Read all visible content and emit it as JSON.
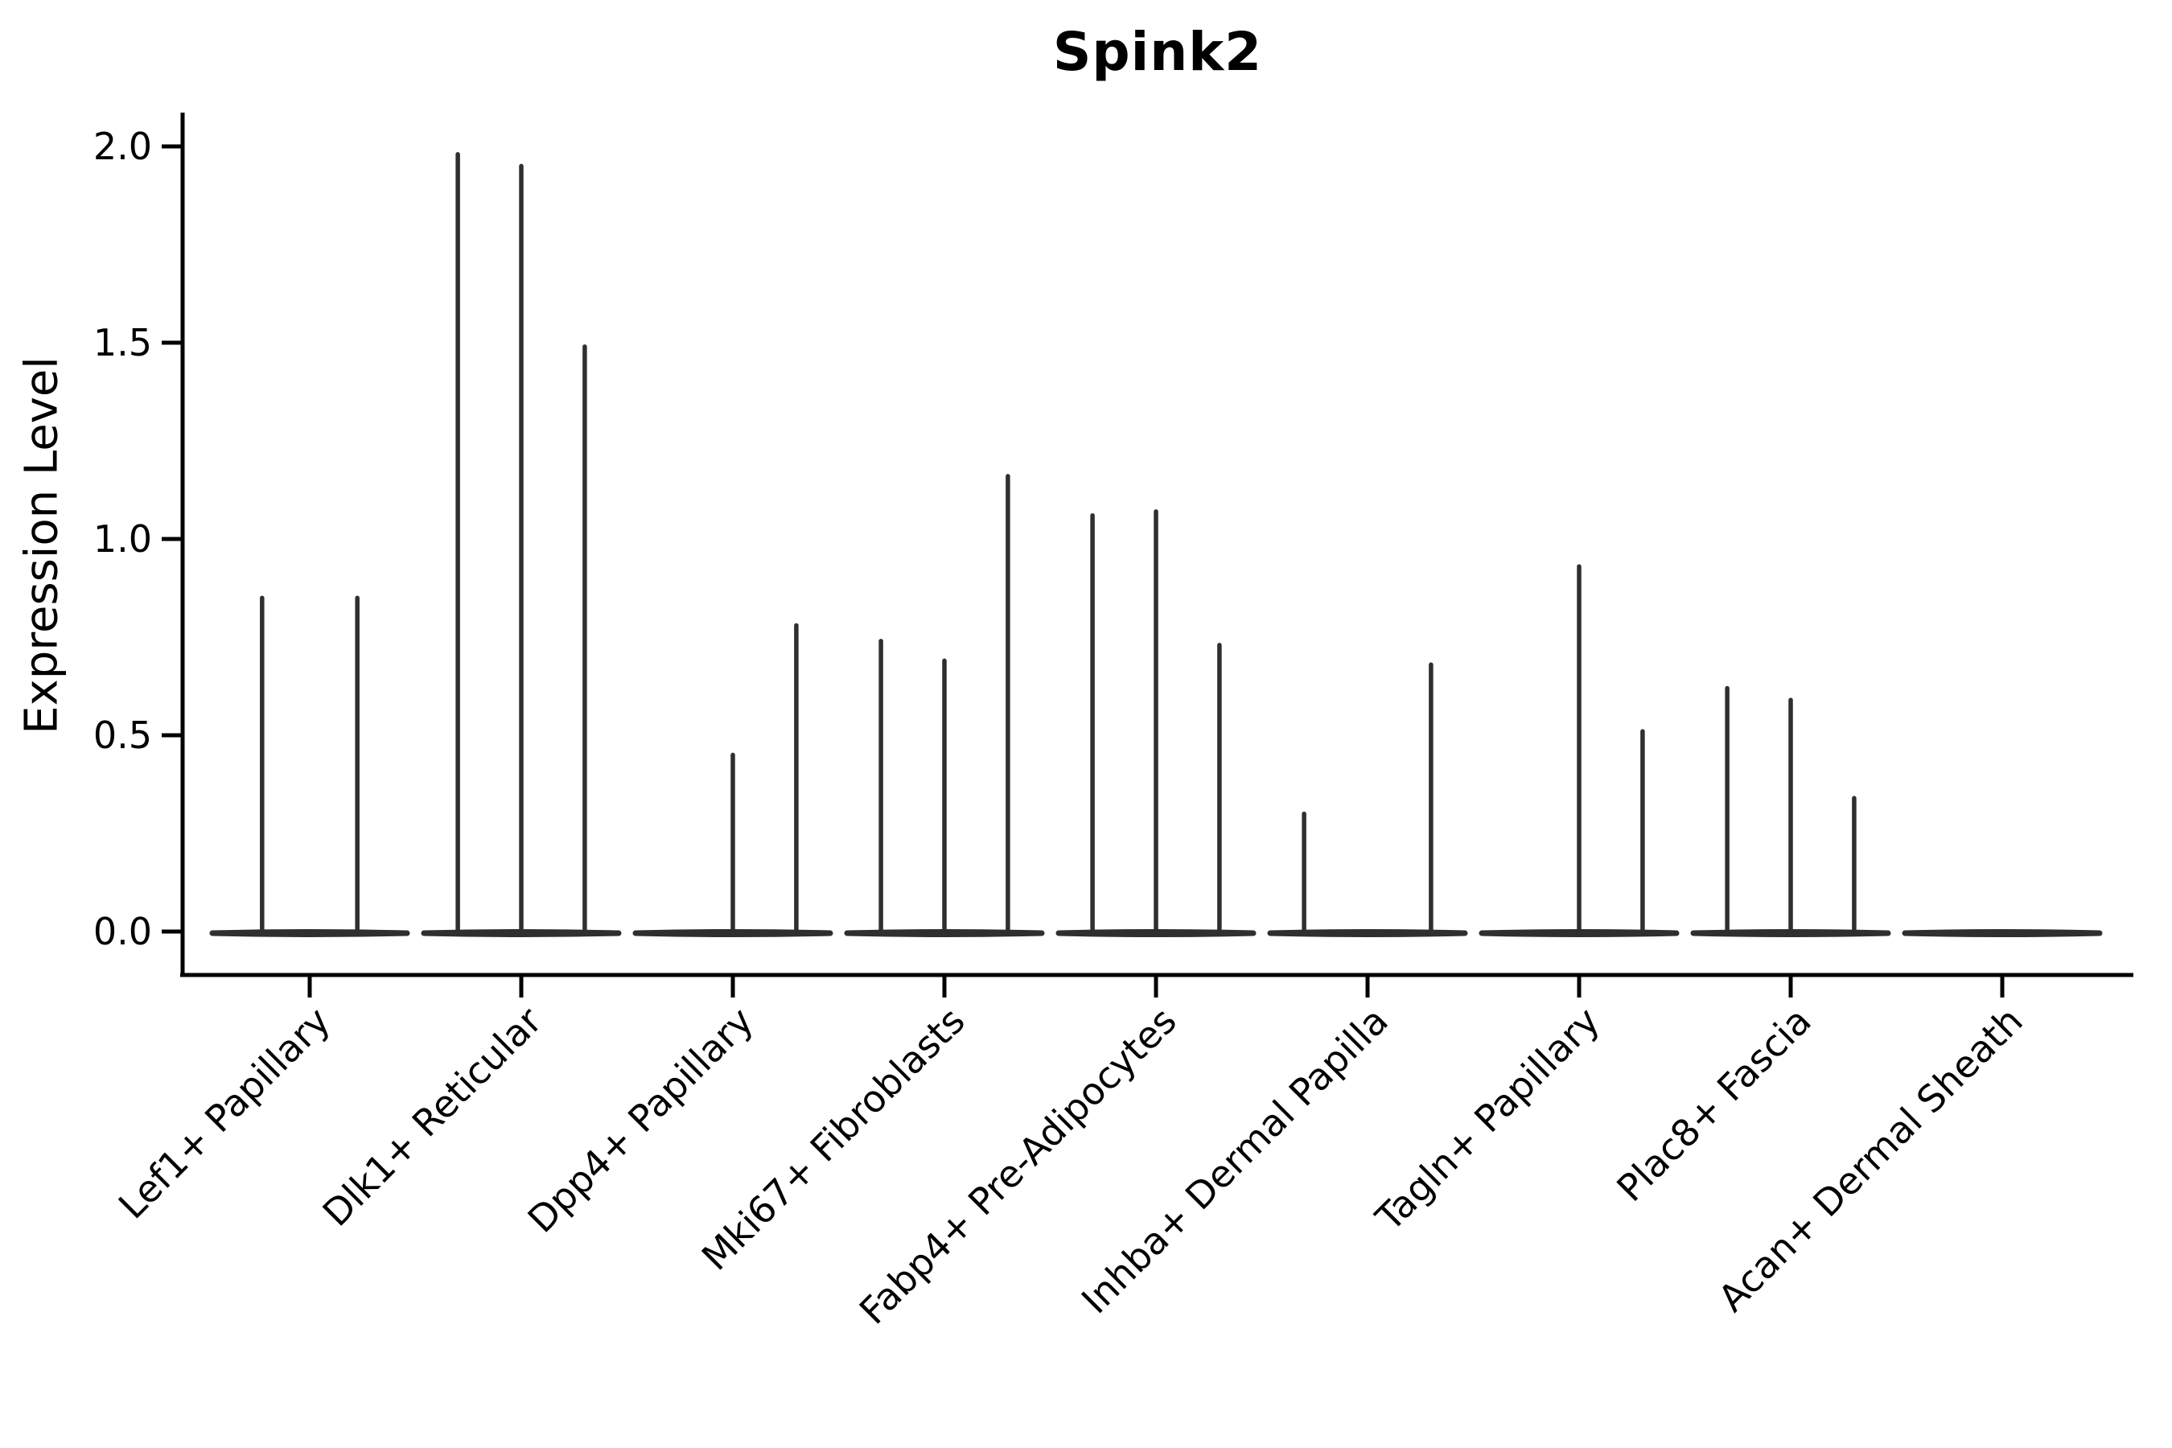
{
  "figure": {
    "title": "Spink2",
    "ylabel": "Expression Level"
  },
  "chart_data": {
    "type": "violin",
    "title": "Spink2",
    "xlabel": "",
    "ylabel": "Expression Level",
    "ylim": [
      -0.11,
      2.09
    ],
    "grid": false,
    "legend": "none",
    "yticks": [
      0.0,
      0.5,
      1.0,
      1.5,
      2.0
    ],
    "ytick_labels": [
      "0.0",
      "0.5",
      "1.0",
      "1.5",
      "2.0"
    ],
    "categories": [
      "Lef1+ Papillary",
      "Dlk1+ Reticular",
      "Dpp4+ Papillary",
      "Mki67+ Fibroblasts",
      "Fabp4+ Pre-Adipocytes",
      "Inhba+ Dermal Papilla",
      "Tagln+ Papillary",
      "Plac8+ Fascia",
      "Acan+ Dermal Sheath"
    ],
    "series": [
      {
        "category": "Lef1+ Papillary",
        "violin_base": 0.0,
        "spikes": [
          {
            "offset": -0.225,
            "value": 0.85
          },
          {
            "offset": 0.225,
            "value": 0.85
          }
        ]
      },
      {
        "category": "Dlk1+ Reticular",
        "violin_base": 0.0,
        "spikes": [
          {
            "offset": -0.3,
            "value": 1.98
          },
          {
            "offset": 0.0,
            "value": 1.95
          },
          {
            "offset": 0.3,
            "value": 1.49
          }
        ]
      },
      {
        "category": "Dpp4+ Papillary",
        "violin_base": 0.0,
        "spikes": [
          {
            "offset": 0.0,
            "value": 0.45
          },
          {
            "offset": 0.3,
            "value": 0.78
          }
        ]
      },
      {
        "category": "Mki67+ Fibroblasts",
        "violin_base": 0.0,
        "spikes": [
          {
            "offset": -0.3,
            "value": 0.74
          },
          {
            "offset": 0.0,
            "value": 0.69
          },
          {
            "offset": 0.3,
            "value": 1.16
          }
        ]
      },
      {
        "category": "Fabp4+ Pre-Adipocytes",
        "violin_base": 0.0,
        "spikes": [
          {
            "offset": -0.3,
            "value": 1.06
          },
          {
            "offset": 0.0,
            "value": 1.07
          },
          {
            "offset": 0.3,
            "value": 0.73
          }
        ]
      },
      {
        "category": "Inhba+ Dermal Papilla",
        "violin_base": 0.0,
        "spikes": [
          {
            "offset": -0.3,
            "value": 0.3
          },
          {
            "offset": 0.3,
            "value": 0.68
          }
        ]
      },
      {
        "category": "Tagln+ Papillary",
        "violin_base": 0.0,
        "spikes": [
          {
            "offset": 0.0,
            "value": 0.93
          },
          {
            "offset": 0.3,
            "value": 0.51
          }
        ]
      },
      {
        "category": "Plac8+ Fascia",
        "violin_base": 0.0,
        "spikes": [
          {
            "offset": -0.3,
            "value": 0.62
          },
          {
            "offset": 0.0,
            "value": 0.59
          },
          {
            "offset": 0.3,
            "value": 0.34
          }
        ]
      },
      {
        "category": "Acan+ Dermal Sheath",
        "violin_base": 0.0,
        "spikes": []
      }
    ],
    "colors": {
      "spike": "#2f2f2f",
      "violin": "#2f2f2f",
      "axis": "#000000",
      "text": "#000000",
      "background": "#ffffff"
    }
  }
}
